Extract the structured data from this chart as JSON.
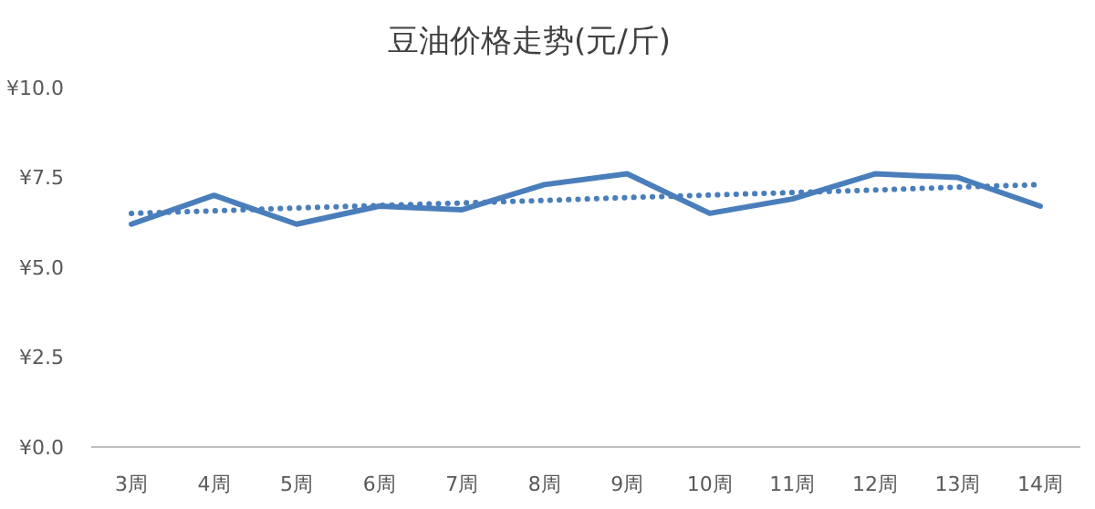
{
  "chart_data": {
    "type": "line",
    "title": "豆油价格走势(元/斤)",
    "categories": [
      "3周",
      "4周",
      "5周",
      "6周",
      "7周",
      "8周",
      "9周",
      "10周",
      "11周",
      "12周",
      "13周",
      "14周"
    ],
    "series": [
      {
        "color": "#4a7ebb",
        "line_style": "solid",
        "values": [
          6.2,
          7.0,
          6.2,
          6.7,
          6.6,
          7.3,
          7.6,
          6.5,
          6.9,
          7.6,
          7.5,
          6.7
        ]
      },
      {
        "color": "#4a7ebb",
        "line_style": "dotted",
        "values": [
          6.5,
          6.57,
          6.65,
          6.72,
          6.79,
          6.86,
          6.94,
          7.01,
          7.08,
          7.15,
          7.23,
          7.3
        ]
      }
    ],
    "ylim": [
      0,
      10
    ],
    "yticks": [
      {
        "value": 0,
        "label": "¥0.0"
      },
      {
        "value": 2.5,
        "label": "¥2.5"
      },
      {
        "value": 5,
        "label": "¥5.0"
      },
      {
        "value": 7.5,
        "label": "¥7.5"
      },
      {
        "value": 10,
        "label": "¥10.0"
      }
    ],
    "grid": false,
    "marker": "none"
  }
}
